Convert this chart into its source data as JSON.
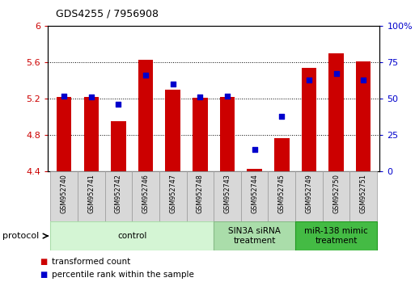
{
  "title": "GDS4255 / 7956908",
  "samples": [
    "GSM952740",
    "GSM952741",
    "GSM952742",
    "GSM952746",
    "GSM952747",
    "GSM952748",
    "GSM952743",
    "GSM952744",
    "GSM952745",
    "GSM952749",
    "GSM952750",
    "GSM952751"
  ],
  "transformed_count": [
    5.22,
    5.22,
    4.95,
    5.63,
    5.3,
    5.21,
    5.22,
    4.43,
    4.77,
    5.54,
    5.7,
    5.61
  ],
  "percentile_rank": [
    52,
    51,
    46,
    66,
    60,
    51,
    52,
    15,
    38,
    63,
    67,
    63
  ],
  "ylim_left": [
    4.4,
    6.0
  ],
  "ylim_right": [
    0,
    100
  ],
  "yticks_left": [
    4.4,
    4.8,
    5.2,
    5.6,
    6.0
  ],
  "yticks_right": [
    0,
    25,
    50,
    75,
    100
  ],
  "ytick_labels_left": [
    "4.4",
    "4.8",
    "5.2",
    "5.6",
    "6"
  ],
  "bar_color": "#cc0000",
  "dot_color": "#0000cc",
  "protocol_groups": [
    {
      "label": "control",
      "start": 0,
      "end": 5,
      "color": "#d4f5d4",
      "border": "#aaddaa"
    },
    {
      "label": "SIN3A siRNA\ntreatment",
      "start": 6,
      "end": 8,
      "color": "#aaddaa",
      "border": "#88bb88"
    },
    {
      "label": "miR-138 mimic\ntreatment",
      "start": 9,
      "end": 11,
      "color": "#44bb44",
      "border": "#229922"
    }
  ],
  "bar_width": 0.55,
  "dot_size": 22
}
